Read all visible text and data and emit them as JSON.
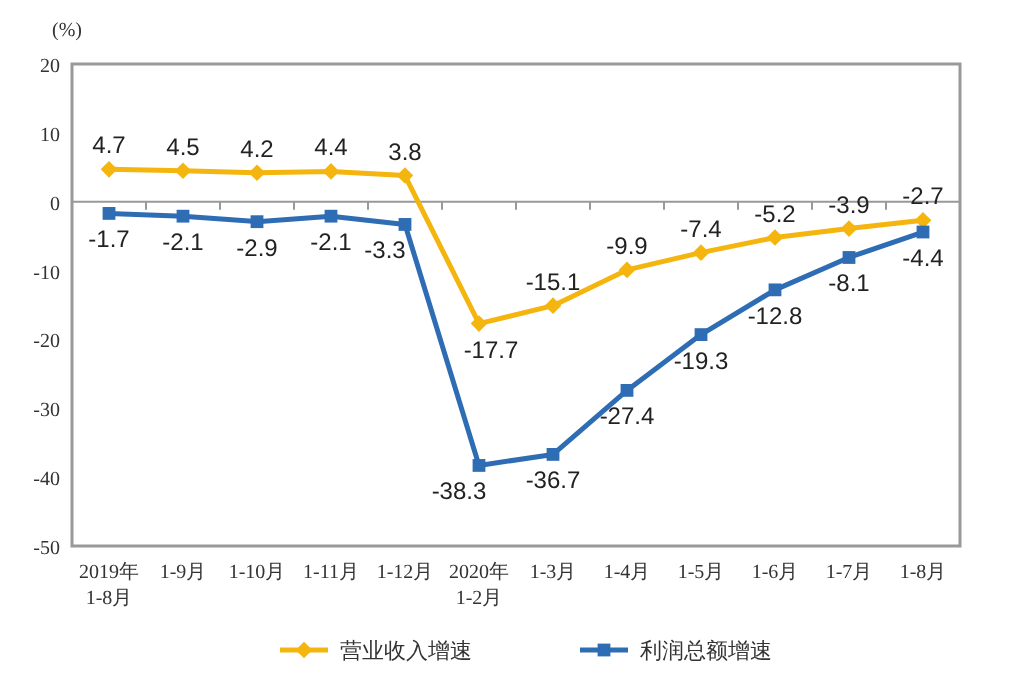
{
  "chart_data": {
    "type": "line",
    "ylabel": "(%)",
    "categories": [
      "2019年\n1-8月",
      "1-9月",
      "1-10月",
      "1-11月",
      "1-12月",
      "2020年\n1-2月",
      "1-3月",
      "1-4月",
      "1-5月",
      "1-6月",
      "1-7月",
      "1-8月"
    ],
    "series": [
      {
        "name": "营业收入增速",
        "color": "#f5b50f",
        "marker": "diamond",
        "values": [
          4.7,
          4.5,
          4.2,
          4.4,
          3.8,
          -17.7,
          -15.1,
          -9.9,
          -7.4,
          -5.2,
          -3.9,
          -2.7
        ]
      },
      {
        "name": "利润总额增速",
        "color": "#2e6db4",
        "marker": "square",
        "values": [
          -1.7,
          -2.1,
          -2.9,
          -2.1,
          -3.3,
          -38.3,
          -36.7,
          -27.4,
          -19.3,
          -12.8,
          -8.1,
          -4.4
        ]
      }
    ],
    "ylim": [
      -50,
      20
    ],
    "yticks": [
      -50,
      -40,
      -30,
      -20,
      -10,
      0,
      10,
      20
    ],
    "legend": "bottom",
    "data_labels": true,
    "line_style": "solid"
  }
}
